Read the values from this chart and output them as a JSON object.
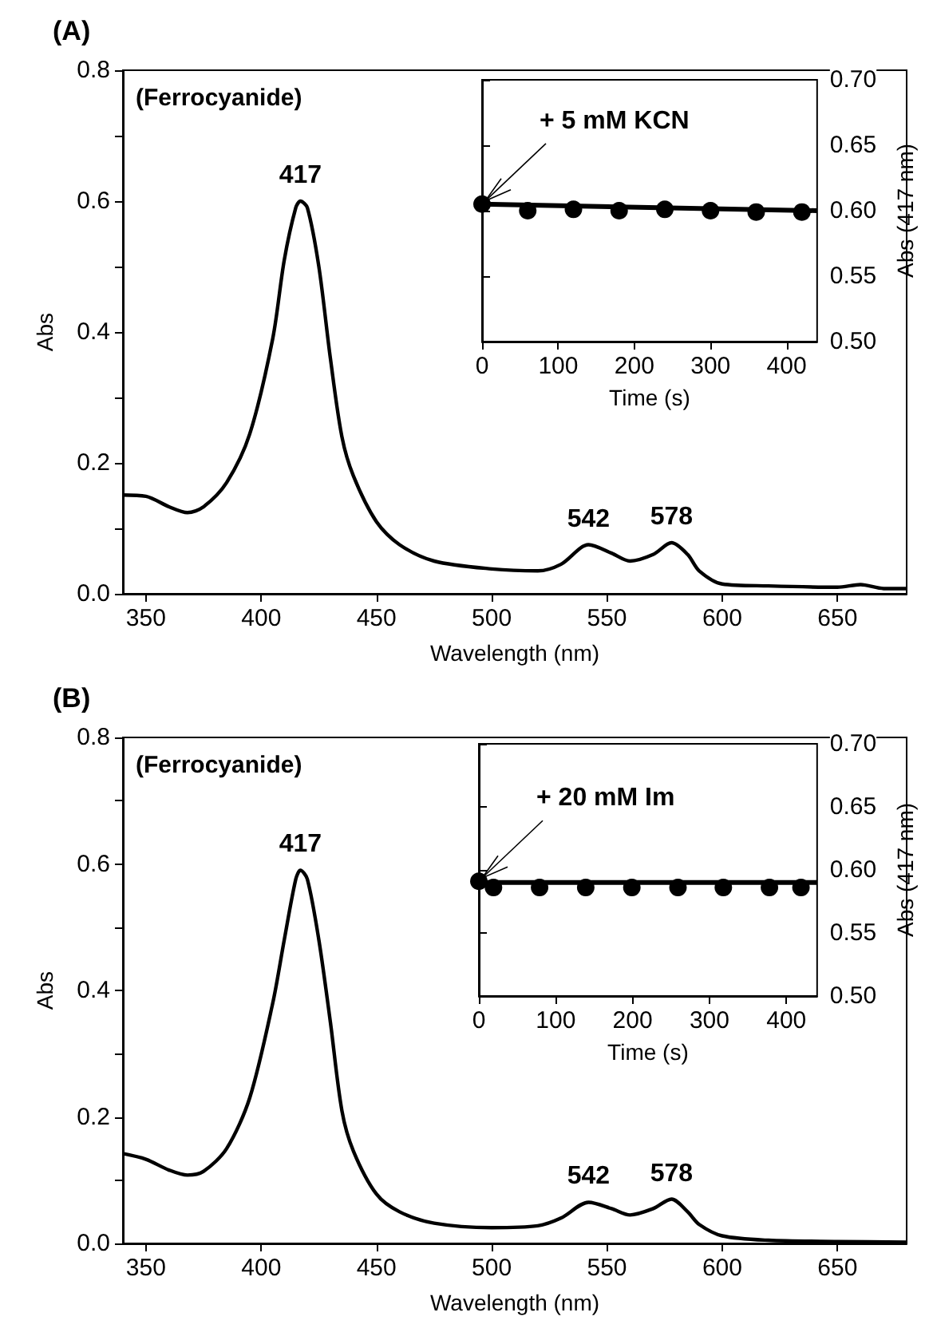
{
  "chart_data": [
    {
      "type": "line",
      "title": "(A)",
      "xlabel": "Wavelength (nm)",
      "ylabel": "Abs",
      "color": "#000000",
      "x": [
        340,
        350,
        360,
        368,
        375,
        385,
        395,
        405,
        410,
        415,
        417,
        420,
        425,
        430,
        435,
        440,
        450,
        460,
        475,
        500,
        520,
        530,
        542,
        552,
        560,
        570,
        578,
        585,
        590,
        600,
        620,
        650,
        660,
        670,
        680
      ],
      "values": [
        0.151,
        0.149,
        0.133,
        0.124,
        0.133,
        0.17,
        0.244,
        0.39,
        0.51,
        0.59,
        0.6,
        0.59,
        0.5,
        0.36,
        0.24,
        0.18,
        0.11,
        0.075,
        0.05,
        0.038,
        0.035,
        0.045,
        0.075,
        0.062,
        0.05,
        0.06,
        0.078,
        0.06,
        0.035,
        0.015,
        0.012,
        0.01,
        0.014,
        0.008,
        0.008
      ],
      "xlim": [
        340,
        680
      ],
      "xticks": [
        350,
        400,
        450,
        500,
        550,
        600,
        650
      ],
      "ylim": [
        0,
        0.8
      ],
      "yticks": [
        {
          "value": 0,
          "label": "0.0"
        },
        {
          "value": 0.1,
          "label": null
        },
        0.2,
        {
          "value": 0.3,
          "label": null
        },
        0.4,
        {
          "value": 0.5,
          "label": null
        },
        0.6,
        {
          "value": 0.7,
          "label": null
        },
        0.8
      ],
      "annotations": [
        "(Ferrocyanide)",
        {
          "text": "417",
          "x": 417,
          "y": 0.6
        },
        {
          "text": "542",
          "x": 542,
          "y": 0.075
        },
        {
          "text": "578",
          "x": 578,
          "y": 0.078
        }
      ]
    },
    {
      "type": "scatter",
      "xlabel": "Time (s)",
      "ylabel": "Abs (417 nm)",
      "series": [
        {
          "type": "scatter",
          "marker": "circle",
          "color": "#000000",
          "x": [
            0,
            60,
            120,
            180,
            240,
            300,
            360,
            420
          ],
          "values": [
            0.605,
            0.6,
            0.601,
            0.6,
            0.601,
            0.6,
            0.599,
            0.599
          ]
        },
        {
          "type": "line",
          "marker": "none",
          "color": "#000000",
          "x": [
            0,
            440
          ],
          "values": [
            0.605,
            0.6
          ]
        }
      ],
      "xlim": [
        0,
        440
      ],
      "xticks": [
        0,
        100,
        200,
        300,
        400
      ],
      "ylim": [
        0.5,
        0.7
      ],
      "yticks": [
        {
          "value": 0.5,
          "label": "0.50"
        },
        {
          "value": 0.55,
          "label": "0.55"
        },
        {
          "value": 0.6,
          "label": "0.60"
        },
        {
          "value": 0.65,
          "label": "0.65"
        },
        {
          "value": 0.7,
          "label": "0.70"
        }
      ],
      "annotations": [
        {
          "text": "+ 5 mM KCN",
          "x": 0,
          "y": 0.605
        }
      ]
    },
    {
      "type": "line",
      "title": "(B)",
      "xlabel": "Wavelength (nm)",
      "ylabel": "Abs",
      "color": "#000000",
      "x": [
        340,
        350,
        360,
        368,
        375,
        385,
        395,
        405,
        410,
        415,
        417,
        420,
        425,
        430,
        435,
        440,
        450,
        460,
        475,
        500,
        520,
        530,
        542,
        552,
        560,
        570,
        578,
        585,
        590,
        600,
        620,
        650,
        680
      ],
      "values": [
        0.142,
        0.133,
        0.116,
        0.108,
        0.114,
        0.15,
        0.23,
        0.38,
        0.48,
        0.576,
        0.59,
        0.576,
        0.48,
        0.35,
        0.21,
        0.146,
        0.078,
        0.05,
        0.032,
        0.025,
        0.028,
        0.04,
        0.065,
        0.055,
        0.045,
        0.055,
        0.07,
        0.05,
        0.03,
        0.012,
        0.005,
        0.003,
        0.002
      ],
      "xlim": [
        340,
        680
      ],
      "xticks": [
        350,
        400,
        450,
        500,
        550,
        600,
        650
      ],
      "ylim": [
        0,
        0.8
      ],
      "yticks": [
        {
          "value": 0,
          "label": "0.0"
        },
        {
          "value": 0.1,
          "label": null
        },
        0.2,
        {
          "value": 0.3,
          "label": null
        },
        0.4,
        {
          "value": 0.5,
          "label": null
        },
        0.6,
        {
          "value": 0.7,
          "label": null
        },
        0.8
      ],
      "annotations": [
        "(Ferrocyanide)",
        {
          "text": "417",
          "x": 417,
          "y": 0.59
        },
        {
          "text": "542",
          "x": 542,
          "y": 0.065
        },
        {
          "text": "578",
          "x": 578,
          "y": 0.07
        }
      ]
    },
    {
      "type": "scatter",
      "xlabel": "Time (s)",
      "ylabel": "Abs (417 nm)",
      "series": [
        {
          "type": "scatter",
          "marker": "circle",
          "color": "#000000",
          "x": [
            0,
            19,
            79,
            139,
            199,
            259,
            318,
            378,
            419
          ],
          "values": [
            0.591,
            0.586,
            0.586,
            0.586,
            0.586,
            0.586,
            0.586,
            0.586,
            0.586
          ]
        },
        {
          "type": "line",
          "marker": "none",
          "color": "#000000",
          "x": [
            0,
            440
          ],
          "values": [
            0.59,
            0.59
          ]
        }
      ],
      "xlim": [
        0,
        440
      ],
      "xticks": [
        0,
        100,
        200,
        300,
        400
      ],
      "ylim": [
        0.5,
        0.7
      ],
      "yticks": [
        {
          "value": 0.5,
          "label": "0.50"
        },
        {
          "value": 0.55,
          "label": "0.55"
        },
        {
          "value": 0.6,
          "label": "0.60"
        },
        {
          "value": 0.65,
          "label": "0.65"
        },
        {
          "value": 0.7,
          "label": "0.70"
        }
      ],
      "annotations": [
        {
          "text": "+ 20 mM Im",
          "x": 0,
          "y": 0.591
        }
      ]
    }
  ]
}
